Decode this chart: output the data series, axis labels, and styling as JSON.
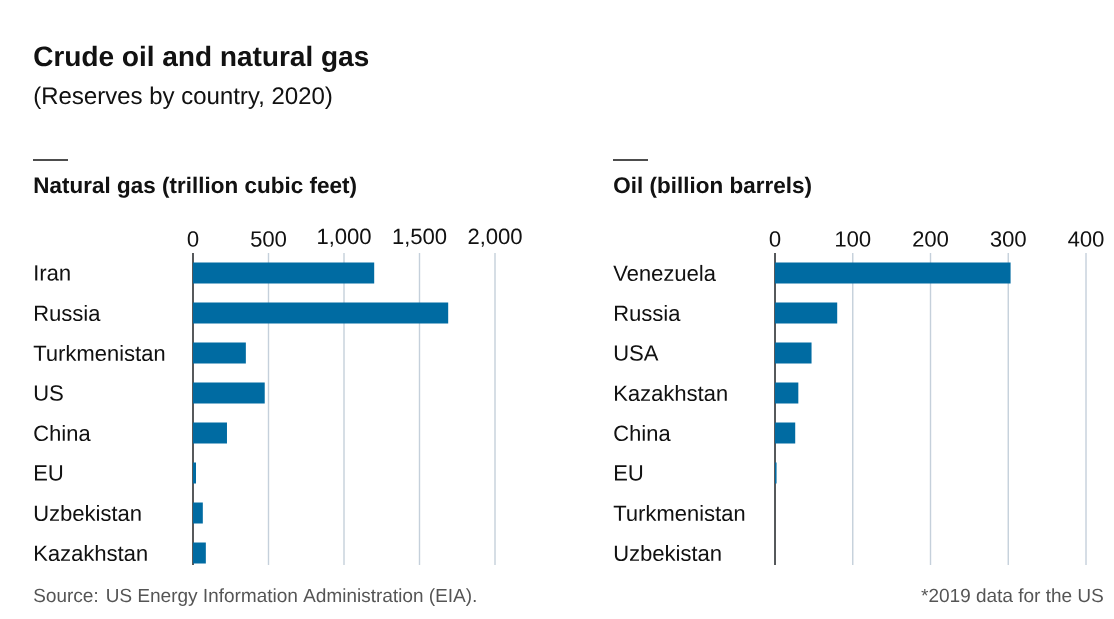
{
  "chart_data": [
    {
      "type": "bar",
      "orientation": "horizontal",
      "title": "Crude oil and natural gas",
      "subtitle": "(Reserves by country, 2020)",
      "xlabel": "Natural gas (trillion cubic feet)",
      "categories": [
        "Iran",
        "Russia",
        "Turkmenistan",
        "US",
        "China",
        "EU",
        "Uzbekistan",
        "Kazakhstan"
      ],
      "values": [
        1200,
        1690,
        350,
        475,
        225,
        20,
        65,
        85
      ],
      "color": "#006ba2",
      "xlim": [
        0,
        2000
      ],
      "xticks": [
        0,
        500,
        {
          "value": 1000,
          "label": "1,000"
        },
        {
          "value": 1500,
          "label": "1,500"
        },
        {
          "value": 2000,
          "label": "2,000"
        }
      ],
      "grid": "x",
      "annotations": [
        "Source: US Energy Information Administration (EIA)."
      ]
    },
    {
      "type": "bar",
      "orientation": "horizontal",
      "xlabel": "Oil (billion barrels)",
      "categories": [
        "Venezuela",
        "Russia",
        "USA",
        "Kazakhstan",
        "China",
        "EU",
        "Turkmenistan",
        "Uzbekistan"
      ],
      "values": [
        303,
        80,
        47,
        30,
        26,
        2,
        0,
        0
      ],
      "color": "#006ba2",
      "xlim": [
        0,
        400
      ],
      "xticks": [
        0,
        100,
        200,
        300,
        400
      ],
      "grid": "x",
      "annotations": [
        "*2019 data for the US"
      ]
    }
  ]
}
